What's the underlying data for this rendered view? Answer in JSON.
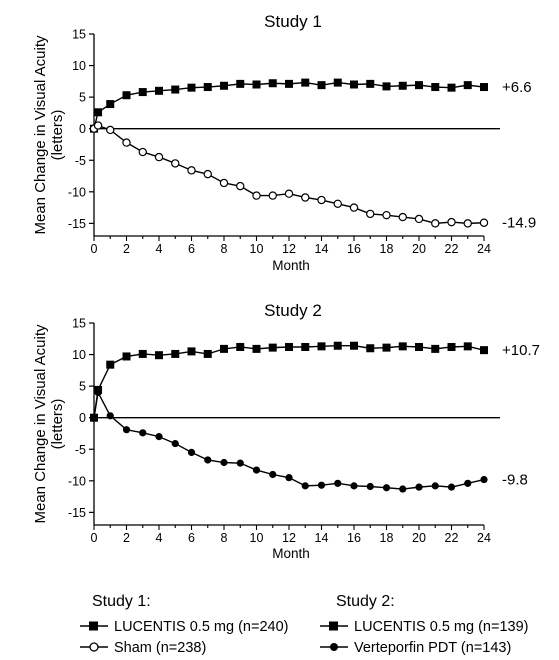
{
  "chart_data": [
    {
      "type": "line",
      "title": "Study 1",
      "xlabel": "Month",
      "ylabel": "Mean Change in Visual Acuity (letters)",
      "xlim": [
        0,
        24
      ],
      "ylim": [
        -17,
        15
      ],
      "xticks": [
        0,
        2,
        4,
        6,
        8,
        10,
        12,
        14,
        16,
        18,
        20,
        22,
        24
      ],
      "yticks": [
        15,
        10,
        5,
        0,
        -5,
        -10,
        -15
      ],
      "grid": false,
      "series": [
        {
          "name": "LUCENTIS 0.5 mg (n=240)",
          "marker": "filled-square",
          "end_label": "+6.6",
          "x": [
            0,
            0.25,
            1,
            2,
            3,
            4,
            5,
            6,
            7,
            8,
            9,
            10,
            11,
            12,
            13,
            14,
            15,
            16,
            17,
            18,
            19,
            20,
            21,
            22,
            23,
            24
          ],
          "values": [
            0,
            2.6,
            3.9,
            5.3,
            5.8,
            6.0,
            6.2,
            6.5,
            6.6,
            6.8,
            7.1,
            7.0,
            7.2,
            7.1,
            7.3,
            6.9,
            7.3,
            7.0,
            7.1,
            6.7,
            6.8,
            6.9,
            6.6,
            6.5,
            6.9,
            6.6
          ]
        },
        {
          "name": "Sham (n=238)",
          "marker": "open-circle",
          "end_label": "-14.9",
          "x": [
            0,
            0.25,
            1,
            2,
            3,
            4,
            5,
            6,
            7,
            8,
            9,
            10,
            11,
            12,
            13,
            14,
            15,
            16,
            17,
            18,
            19,
            20,
            21,
            22,
            23,
            24
          ],
          "values": [
            0,
            0.5,
            -0.2,
            -2.2,
            -3.7,
            -4.5,
            -5.5,
            -6.6,
            -7.2,
            -8.6,
            -9.1,
            -10.6,
            -10.6,
            -10.3,
            -10.9,
            -11.3,
            -11.9,
            -12.5,
            -13.5,
            -13.7,
            -14.0,
            -14.3,
            -15.0,
            -14.8,
            -15.0,
            -14.9
          ]
        }
      ]
    },
    {
      "type": "line",
      "title": "Study 2",
      "xlabel": "Month",
      "ylabel": "Mean Change in Visual Acuity (letters)",
      "xlim": [
        0,
        24
      ],
      "ylim": [
        -17,
        15
      ],
      "xticks": [
        0,
        2,
        4,
        6,
        8,
        10,
        12,
        14,
        16,
        18,
        20,
        22,
        24
      ],
      "yticks": [
        15,
        10,
        5,
        0,
        -5,
        -10,
        -15
      ],
      "grid": false,
      "series": [
        {
          "name": "LUCENTIS 0.5 mg (n=139)",
          "marker": "filled-square",
          "end_label": "+10.7",
          "x": [
            0,
            0.25,
            1,
            2,
            3,
            4,
            5,
            6,
            7,
            8,
            9,
            10,
            11,
            12,
            13,
            14,
            15,
            16,
            17,
            18,
            19,
            20,
            21,
            22,
            23,
            24
          ],
          "values": [
            0,
            4.4,
            8.4,
            9.7,
            10.1,
            9.9,
            10.1,
            10.5,
            10.1,
            10.9,
            11.2,
            10.9,
            11.1,
            11.2,
            11.2,
            11.3,
            11.4,
            11.4,
            11.0,
            11.1,
            11.3,
            11.2,
            10.9,
            11.2,
            11.3,
            10.7
          ]
        },
        {
          "name": "Verteporfin PDT (n=143)",
          "marker": "filled-circle",
          "end_label": "-9.8",
          "x": [
            0,
            0.25,
            1,
            2,
            3,
            4,
            5,
            6,
            7,
            8,
            9,
            10,
            11,
            12,
            13,
            14,
            15,
            16,
            17,
            18,
            19,
            20,
            21,
            22,
            23,
            24
          ],
          "values": [
            0,
            4.0,
            0.3,
            -1.9,
            -2.4,
            -3.0,
            -4.1,
            -5.5,
            -6.7,
            -7.1,
            -7.2,
            -8.3,
            -9.0,
            -9.5,
            -10.8,
            -10.7,
            -10.4,
            -10.8,
            -10.9,
            -11.1,
            -11.3,
            -11.0,
            -10.8,
            -11.0,
            -10.4,
            -9.8
          ]
        }
      ]
    }
  ],
  "legend": {
    "study1": {
      "heading": "Study 1:",
      "items": [
        {
          "label": "LUCENTIS 0.5 mg (n=240)",
          "marker": "filled-square"
        },
        {
          "label": "Sham (n=238)",
          "marker": "open-circle"
        }
      ]
    },
    "study2": {
      "heading": "Study 2:",
      "items": [
        {
          "label": "LUCENTIS 0.5 mg (n=139)",
          "marker": "filled-square"
        },
        {
          "label": "Verteporfin PDT (n=143)",
          "marker": "filled-circle"
        }
      ]
    }
  }
}
